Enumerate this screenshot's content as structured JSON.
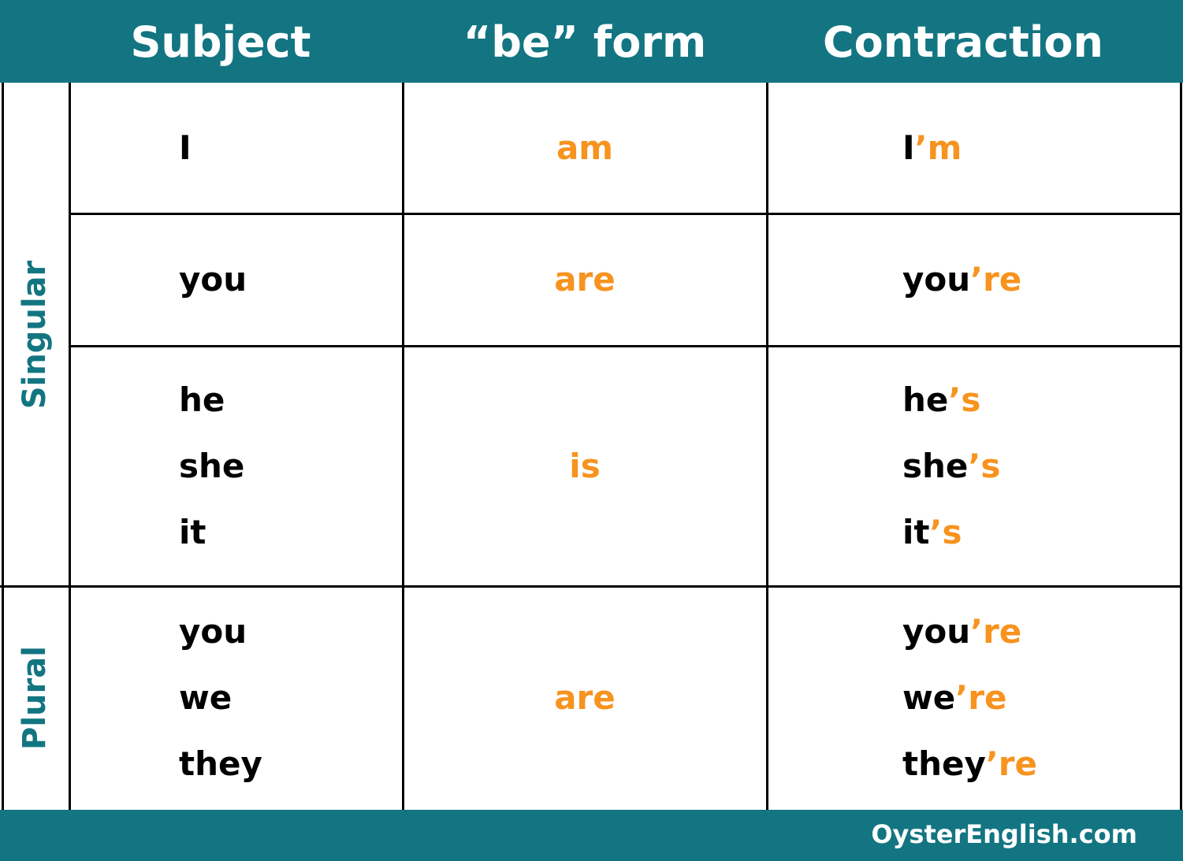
{
  "table": {
    "headers": [
      "Subject",
      "“be” form",
      "Contraction"
    ],
    "groups": [
      {
        "label": "Singular",
        "rows": [
          {
            "subjects": [
              "I"
            ],
            "be": "am",
            "contractions": [
              {
                "base": "I",
                "ending": "’m"
              }
            ]
          },
          {
            "subjects": [
              "you"
            ],
            "be": "are",
            "contractions": [
              {
                "base": "you",
                "ending": "’re"
              }
            ]
          },
          {
            "subjects": [
              "he",
              "she",
              "it"
            ],
            "be": "is",
            "contractions": [
              {
                "base": "he",
                "ending": "’s"
              },
              {
                "base": "she",
                "ending": "’s"
              },
              {
                "base": "it",
                "ending": "’s"
              }
            ]
          }
        ]
      },
      {
        "label": "Plural",
        "rows": [
          {
            "subjects": [
              "you",
              "we",
              "they"
            ],
            "be": "are",
            "contractions": [
              {
                "base": "you",
                "ending": "’re"
              },
              {
                "base": "we",
                "ending": "’re"
              },
              {
                "base": "they",
                "ending": "’re"
              }
            ]
          }
        ]
      }
    ]
  },
  "footer": "OysterEnglish.com"
}
